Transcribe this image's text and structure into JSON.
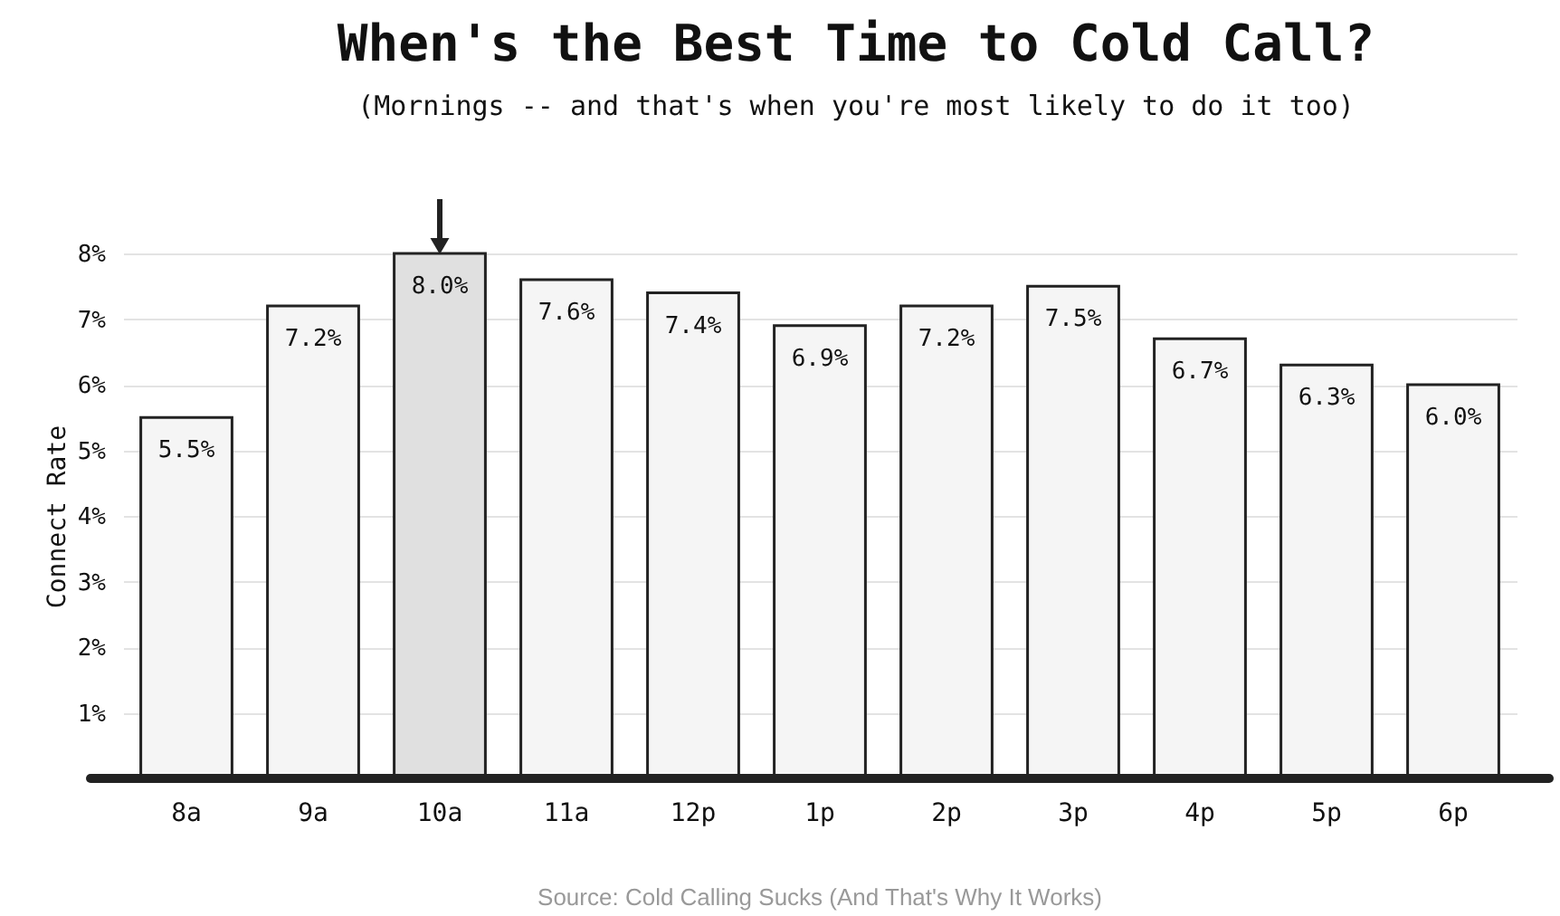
{
  "chart_data": {
    "type": "bar",
    "title": "When's the Best Time to Cold Call?",
    "subtitle": "(Mornings -- and that's when you're most likely to do it too)",
    "ylabel": "Connect Rate",
    "categories": [
      "8a",
      "9a",
      "10a",
      "11a",
      "12p",
      "1p",
      "2p",
      "3p",
      "4p",
      "5p",
      "6p"
    ],
    "values": [
      5.5,
      7.2,
      8.0,
      7.6,
      7.4,
      6.9,
      7.2,
      7.5,
      6.7,
      6.3,
      6.0
    ],
    "value_labels": [
      "5.5%",
      "7.2%",
      "8.0%",
      "7.6%",
      "7.4%",
      "6.9%",
      "7.2%",
      "7.5%",
      "6.7%",
      "6.3%",
      "6.0%"
    ],
    "colors": [
      "#f5f5f5",
      "#f5f5f5",
      "#e0e0e0",
      "#f5f5f5",
      "#f5f5f5",
      "#f5f5f5",
      "#f5f5f5",
      "#f5f5f5",
      "#f5f5f5",
      "#f5f5f5",
      "#f5f5f5"
    ],
    "ylim": [
      0,
      8
    ],
    "yticks": [
      {
        "value": 1,
        "label": "1%"
      },
      {
        "value": 2,
        "label": "2%"
      },
      {
        "value": 3,
        "label": "3%"
      },
      {
        "value": 4,
        "label": "4%"
      },
      {
        "value": 5,
        "label": "5%"
      },
      {
        "value": 6,
        "label": "6%"
      },
      {
        "value": 7,
        "label": "7%"
      },
      {
        "value": 8,
        "label": "8%"
      }
    ],
    "grid": "y",
    "legend": false,
    "annotations": [
      "Source: Cold Calling Sucks (And That's Why It Works)"
    ]
  }
}
